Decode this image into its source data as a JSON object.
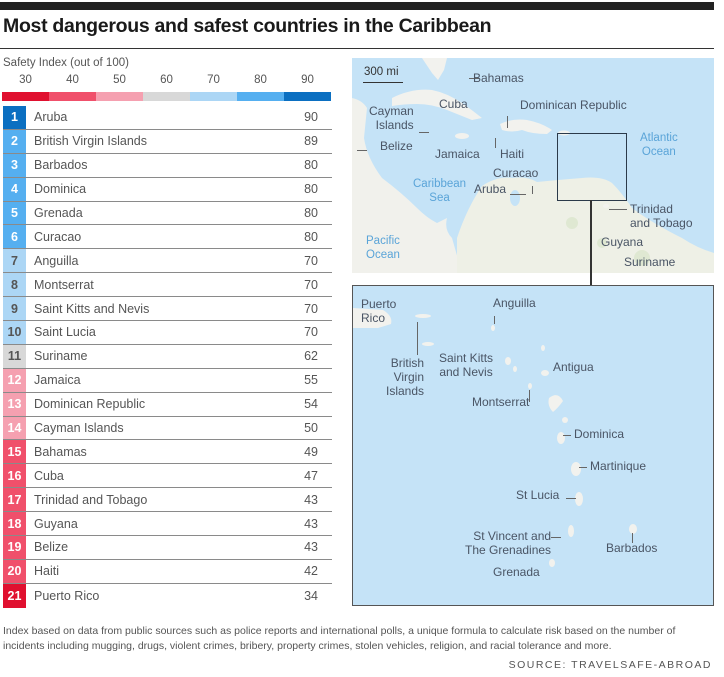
{
  "title": "Most dangerous and safest countries in the Caribbean",
  "legend": {
    "label": "Safety Index (out of 100)",
    "ticks": [
      "30",
      "40",
      "50",
      "60",
      "70",
      "80",
      "90"
    ],
    "colors": [
      "#e0102f",
      "#f0506b",
      "#f5a0b0",
      "#d8d8d8",
      "#acd6f5",
      "#55aff0",
      "#0b6fc1"
    ]
  },
  "table": {
    "rows": [
      {
        "rank": "1",
        "name": "Aruba",
        "score": "90",
        "color": "#0b6fc1"
      },
      {
        "rank": "2",
        "name": "British Virgin Islands",
        "score": "89",
        "color": "#55aff0"
      },
      {
        "rank": "3",
        "name": "Barbados",
        "score": "80",
        "color": "#55aff0"
      },
      {
        "rank": "4",
        "name": "Dominica",
        "score": "80",
        "color": "#55aff0"
      },
      {
        "rank": "5",
        "name": "Grenada",
        "score": "80",
        "color": "#55aff0"
      },
      {
        "rank": "6",
        "name": "Curacao",
        "score": "80",
        "color": "#55aff0"
      },
      {
        "rank": "7",
        "name": "Anguilla",
        "score": "70",
        "color": "#acd6f5"
      },
      {
        "rank": "8",
        "name": "Montserrat",
        "score": "70",
        "color": "#acd6f5"
      },
      {
        "rank": "9",
        "name": "Saint Kitts and Nevis",
        "score": "70",
        "color": "#acd6f5"
      },
      {
        "rank": "10",
        "name": "Saint Lucia",
        "score": "70",
        "color": "#acd6f5"
      },
      {
        "rank": "11",
        "name": "Suriname",
        "score": "62",
        "color": "#d8d8d8"
      },
      {
        "rank": "12",
        "name": "Jamaica",
        "score": "55",
        "color": "#f5a0b0"
      },
      {
        "rank": "13",
        "name": "Dominican Republic",
        "score": "54",
        "color": "#f5a0b0"
      },
      {
        "rank": "14",
        "name": "Cayman Islands",
        "score": "50",
        "color": "#f5a0b0"
      },
      {
        "rank": "15",
        "name": "Bahamas",
        "score": "49",
        "color": "#f0506b"
      },
      {
        "rank": "16",
        "name": "Cuba",
        "score": "47",
        "color": "#f0506b"
      },
      {
        "rank": "17",
        "name": "Trinidad and Tobago",
        "score": "43",
        "color": "#f0506b"
      },
      {
        "rank": "18",
        "name": "Guyana",
        "score": "43",
        "color": "#f0506b"
      },
      {
        "rank": "19",
        "name": "Belize",
        "score": "43",
        "color": "#f0506b"
      },
      {
        "rank": "20",
        "name": "Haiti",
        "score": "42",
        "color": "#f0506b"
      },
      {
        "rank": "21",
        "name": "Puerto Rico",
        "score": "34",
        "color": "#e0102f"
      }
    ]
  },
  "map_top": {
    "scale": "300 mi",
    "labels": {
      "bahamas": "Bahamas",
      "cuba": "Cuba",
      "dominican_republic": "Dominican Republic",
      "cayman_1": "Cayman",
      "cayman_2": "Islands",
      "belize": "Belize",
      "jamaica": "Jamaica",
      "haiti": "Haiti",
      "curacao": "Curacao",
      "aruba": "Aruba",
      "trinidad_1": "Trinidad",
      "trinidad_2": "and Tobago",
      "guyana": "Guyana",
      "suriname": "Suriname"
    },
    "water": {
      "atlantic_1": "Atlantic",
      "atlantic_2": "Ocean",
      "caribbean_1": "Caribbean",
      "caribbean_2": "Sea",
      "pacific_1": "Pacific",
      "pacific_2": "Ocean"
    }
  },
  "map_inset": {
    "labels": {
      "puerto_1": "Puerto",
      "puerto_2": "Rico",
      "anguilla": "Anguilla",
      "bvi_1": "British",
      "bvi_2": "Virgin",
      "bvi_3": "Islands",
      "skn_1": "Saint Kitts",
      "skn_2": "and Nevis",
      "antigua": "Antigua",
      "montserrat": "Montserrat",
      "dominica": "Dominica",
      "martinique": "Martinique",
      "st_lucia": "St Lucia",
      "svg_1": "St Vincent and",
      "svg_2": "The Grenadines",
      "barbados": "Barbados",
      "grenada": "Grenada"
    }
  },
  "footnote": "Index based on data from public sources such as police reports and international polls, a unique formula to calculate risk based on the number of incidents including mugging, drugs, violent crimes, bribery, property crimes, stolen vehicles, religion, and racial tolerance and more.",
  "source": "SOURCE: TRAVELSAFE-ABROAD",
  "chart_data": {
    "type": "table",
    "title": "Most dangerous and safest countries in the Caribbean",
    "xlabel": "",
    "ylabel": "Safety Index (out of 100)",
    "legend": [
      "30",
      "40",
      "50",
      "60",
      "70",
      "80",
      "90"
    ],
    "categories": [
      "Aruba",
      "British Virgin Islands",
      "Barbados",
      "Dominica",
      "Grenada",
      "Curacao",
      "Anguilla",
      "Montserrat",
      "Saint Kitts and Nevis",
      "Saint Lucia",
      "Suriname",
      "Jamaica",
      "Dominican Republic",
      "Cayman Islands",
      "Bahamas",
      "Cuba",
      "Trinidad and Tobago",
      "Guyana",
      "Belize",
      "Haiti",
      "Puerto Rico"
    ],
    "values": [
      90,
      89,
      80,
      80,
      80,
      80,
      70,
      70,
      70,
      70,
      62,
      55,
      54,
      50,
      49,
      47,
      43,
      43,
      43,
      42,
      34
    ],
    "ylim": [
      0,
      100
    ]
  }
}
